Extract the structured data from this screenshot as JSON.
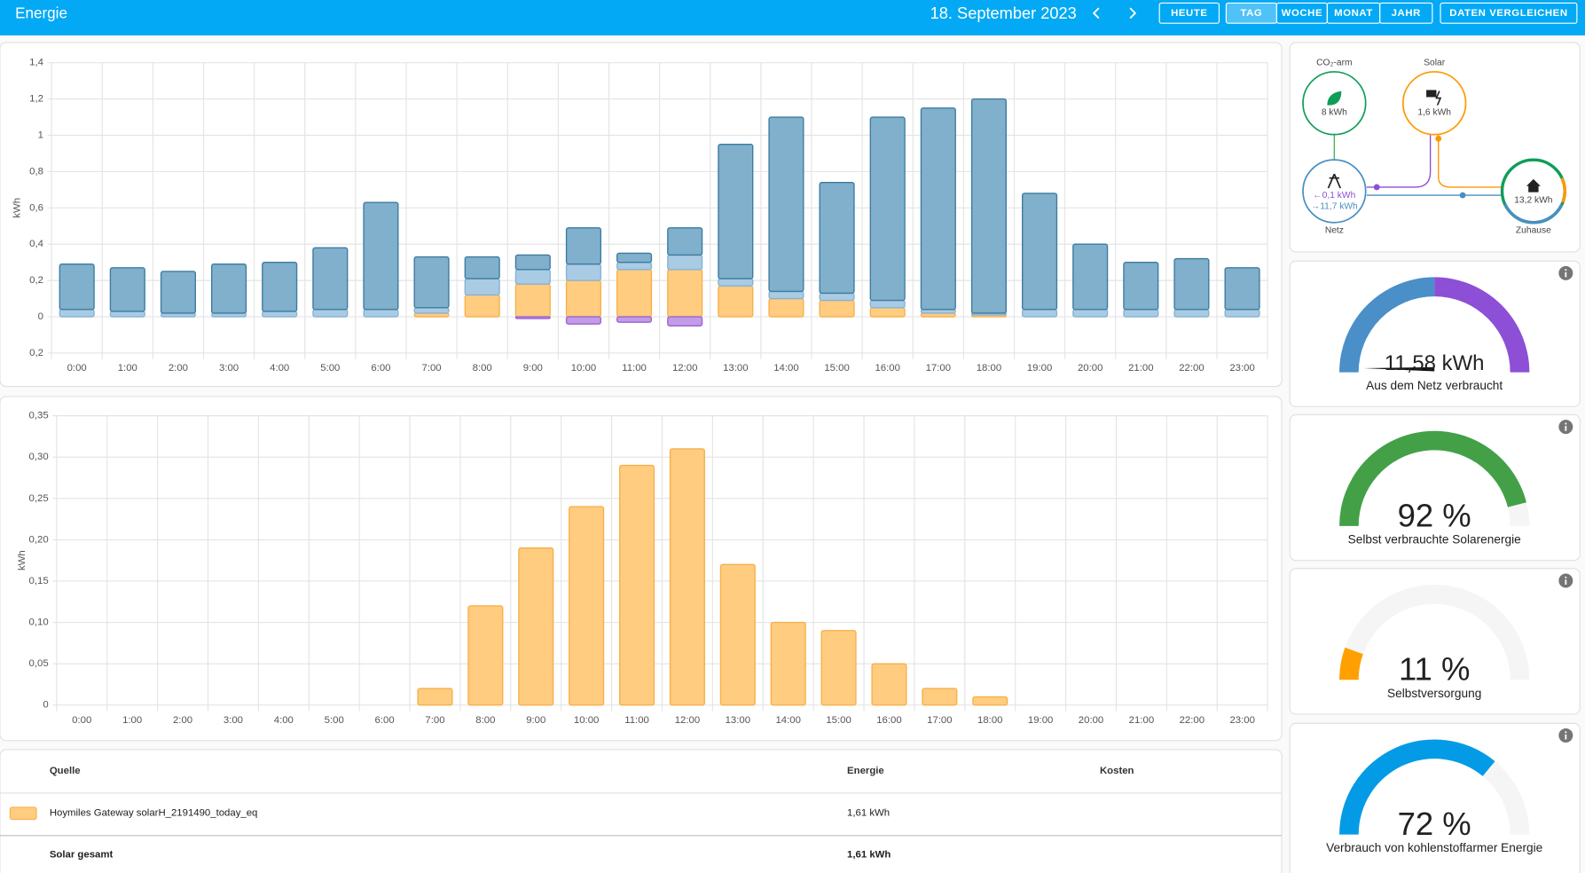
{
  "header": {
    "title": "Energie",
    "date": "18. September 2023",
    "buttons": [
      "HEUTE",
      "TAG",
      "WOCHE",
      "MONAT",
      "JAHR",
      "DATEN VERGLEICHEN"
    ],
    "selected_button": 1
  },
  "usage_chart": {
    "type": "bar",
    "stacked": true,
    "y_label": "kWh",
    "grid": true,
    "categories": [
      "0:00",
      "1:00",
      "2:00",
      "3:00",
      "4:00",
      "5:00",
      "6:00",
      "7:00",
      "8:00",
      "9:00",
      "10:00",
      "11:00",
      "12:00",
      "13:00",
      "14:00",
      "15:00",
      "16:00",
      "17:00",
      "18:00",
      "19:00",
      "20:00",
      "21:00",
      "22:00",
      "23:00"
    ],
    "ylim": [
      -0.2,
      1.4
    ],
    "yticks": [
      {
        "value": -0.2,
        "label": "0,2"
      },
      0,
      {
        "value": 0.2,
        "label": "0,2"
      },
      {
        "value": 0.4,
        "label": "0,4"
      },
      {
        "value": 0.6,
        "label": "0,6"
      },
      {
        "value": 0.8,
        "label": "0,8"
      },
      1,
      {
        "value": 1.2,
        "label": "1,2"
      },
      {
        "value": 1.4,
        "label": "1,4"
      }
    ],
    "series": [
      {
        "color": "#ffcc80",
        "border_color": "#f7b04a",
        "values": [
          0,
          0,
          0,
          0,
          0,
          0,
          0,
          0.02,
          0.12,
          0.18,
          0.2,
          0.26,
          0.26,
          0.17,
          0.1,
          0.09,
          0.05,
          0.02,
          0.01,
          0,
          0,
          0,
          0,
          0
        ]
      },
      {
        "color": "#a9cbe4",
        "border_color": "#86b2d4",
        "values": [
          0.04,
          0.03,
          0.02,
          0.02,
          0.03,
          0.04,
          0.04,
          0.03,
          0.09,
          0.08,
          0.09,
          0.04,
          0.08,
          0.04,
          0.04,
          0.04,
          0.04,
          0.02,
          0.01,
          0.04,
          0.04,
          0.04,
          0.04,
          0.04
        ]
      },
      {
        "color": "#80b0cb",
        "border_color": "#3c7ba1",
        "values": [
          0.25,
          0.24,
          0.23,
          0.27,
          0.27,
          0.34,
          0.59,
          0.28,
          0.12,
          0.08,
          0.2,
          0.05,
          0.15,
          0.74,
          0.96,
          0.61,
          1.01,
          1.11,
          1.18,
          0.64,
          0.36,
          0.26,
          0.28,
          0.23
        ]
      },
      {
        "color": "#c39ce6",
        "border_color": "#9a60d4",
        "values": [
          0,
          0,
          0,
          0,
          0,
          0,
          0,
          0,
          0,
          -0.01,
          -0.04,
          -0.03,
          -0.05,
          0,
          0,
          0,
          0,
          0,
          0,
          0,
          0,
          0,
          0,
          0
        ]
      }
    ]
  },
  "solar_chart": {
    "type": "bar",
    "y_label": "kWh",
    "grid": true,
    "color": "#ffcc80",
    "border_color": "#f7b04a",
    "categories": [
      "0:00",
      "1:00",
      "2:00",
      "3:00",
      "4:00",
      "5:00",
      "6:00",
      "7:00",
      "8:00",
      "9:00",
      "10:00",
      "11:00",
      "12:00",
      "13:00",
      "14:00",
      "15:00",
      "16:00",
      "17:00",
      "18:00",
      "19:00",
      "20:00",
      "21:00",
      "22:00",
      "23:00"
    ],
    "values": [
      0,
      0,
      0,
      0,
      0,
      0,
      0,
      0.02,
      0.12,
      0.19,
      0.24,
      0.29,
      0.31,
      0.17,
      0.1,
      0.09,
      0.05,
      0.02,
      0.01,
      0,
      0,
      0,
      0,
      0
    ],
    "ylim": [
      0,
      0.35
    ],
    "yticks": [
      0,
      {
        "value": 0.05,
        "label": "0,05"
      },
      {
        "value": 0.1,
        "label": "0,10"
      },
      {
        "value": 0.15,
        "label": "0,15"
      },
      {
        "value": 0.2,
        "label": "0,20"
      },
      {
        "value": 0.25,
        "label": "0,25"
      },
      {
        "value": 0.3,
        "label": "0,30"
      },
      {
        "value": 0.35,
        "label": "0,35"
      }
    ]
  },
  "flow": {
    "low_carbon": {
      "label": "CO₂-arm",
      "value": "8 kWh"
    },
    "solar": {
      "label": "Solar",
      "value": "1,6 kWh"
    },
    "grid": {
      "label": "Netz",
      "returned": "←0,1 kWh",
      "consumed": "→11,7 kWh"
    },
    "home": {
      "label": "Zuhause",
      "value": "13,2 kWh"
    }
  },
  "gauges": [
    {
      "value_label": "11,58 kWh",
      "name": "Aus dem Netz verbraucht",
      "colors": [
        "#4a8fc7",
        "#8c4fd6"
      ]
    },
    {
      "value": 92,
      "value_label": "92 %",
      "name": "Selbst verbrauchte Solarenergie",
      "color": "#43a047"
    },
    {
      "value": 11,
      "value_label": "11 %",
      "name": "Selbstversorgung",
      "color": "#ffa000"
    },
    {
      "value": 72,
      "value_label": "72 %",
      "name": "Verbrauch von kohlenstoffarmer Energie",
      "color": "#039be5"
    }
  ],
  "table": {
    "headers": [
      "Quelle",
      "Energie",
      "Kosten"
    ],
    "rows": [
      {
        "color": "#ffcc80",
        "source": "Hoymiles Gateway solarH_2191490_today_eq",
        "energy": "1,61 kWh"
      }
    ],
    "total": {
      "label": "Solar gesamt",
      "energy": "1,61 kWh"
    }
  }
}
